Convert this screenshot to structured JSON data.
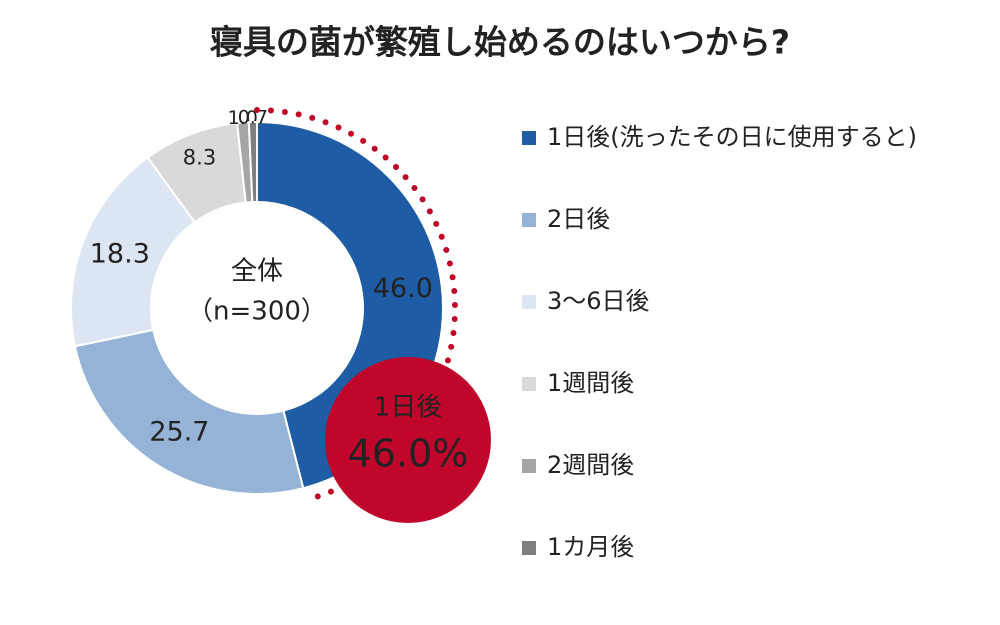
{
  "chart_data": {
    "type": "donut",
    "title": "寝具の菌が繁殖し始めるのはいつから?",
    "categories": [
      "1日後(洗ったその日に使用すると)",
      "2日後",
      "3〜6日後",
      "1週間後",
      "2週間後",
      "1カ月後"
    ],
    "values": [
      46.0,
      25.7,
      18.3,
      8.3,
      1.0,
      0.7
    ],
    "value_labels": [
      "46.0",
      "25.7",
      "18.3",
      "8.3",
      "1.0",
      "0.7"
    ],
    "colors": [
      "#1f5ca6",
      "#95b3d7",
      "#dce6f2",
      "#d9d9d9",
      "#a6a6a6",
      "#7f7f7f"
    ],
    "center_text": [
      "全体",
      "（n=300）"
    ],
    "annotations": [
      "1日後",
      "46.0%"
    ],
    "legend": "right"
  }
}
